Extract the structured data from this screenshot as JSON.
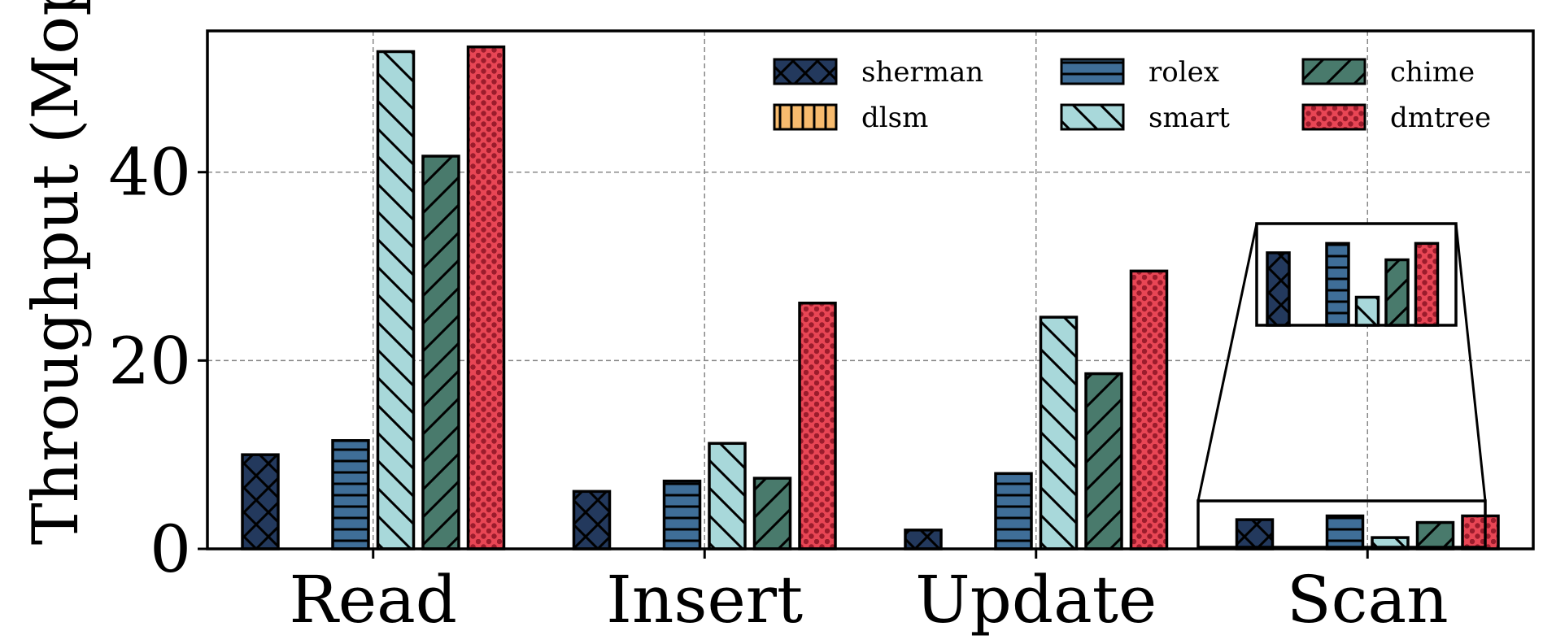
{
  "chart_data": {
    "type": "bar",
    "title": "",
    "xlabel": "",
    "ylabel": "Throughput (Mops",
    "categories": [
      "Read",
      "Insert",
      "Update",
      "Scan"
    ],
    "ylim": [
      0,
      55
    ],
    "yticks": [
      0,
      20,
      40
    ],
    "grid": true,
    "legend": {
      "placement": "top-right",
      "columns": 3
    },
    "series": [
      {
        "name": "sherman",
        "values": [
          10.0,
          6.1,
          2.0,
          3.1
        ],
        "color": "#23395d",
        "hatch": "cross"
      },
      {
        "name": "dlsm",
        "values": [
          0,
          0,
          0,
          0
        ],
        "color": "#f7bb6e",
        "hatch": "vertical"
      },
      {
        "name": "rolex",
        "values": [
          11.5,
          7.2,
          8.0,
          3.5
        ],
        "color": "#3f6e98",
        "hatch": "horizontal"
      },
      {
        "name": "smart",
        "values": [
          52.8,
          11.2,
          24.6,
          1.2
        ],
        "color": "#a8d8da",
        "hatch": "back-diagonal"
      },
      {
        "name": "chime",
        "values": [
          41.7,
          7.5,
          18.6,
          2.8
        ],
        "color": "#497a6c",
        "hatch": "forward-diagonal"
      },
      {
        "name": "dmtree",
        "values": [
          53.3,
          26.1,
          29.5,
          3.5
        ],
        "color": "#e84655",
        "hatch": "dots"
      }
    ],
    "inset": {
      "category": "Scan",
      "magnified_series_values": [
        3.1,
        0,
        3.5,
        1.2,
        2.8,
        3.5
      ]
    }
  }
}
